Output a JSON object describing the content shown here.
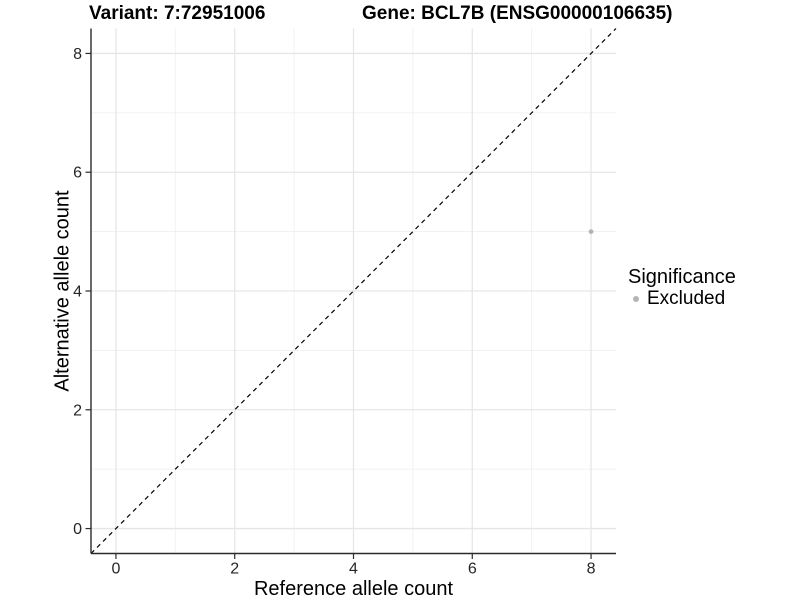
{
  "header": {
    "title_variant": "Variant: 7:72951006",
    "title_gene": "Gene: BCL7B (ENSG00000106635)"
  },
  "axes": {
    "x_label": "Reference allele count",
    "y_label": "Alternative allele count"
  },
  "legend": {
    "title": "Significance",
    "items": [
      {
        "label": "Excluded",
        "color": "#b4b4b4"
      }
    ]
  },
  "chart_data": {
    "type": "scatter",
    "title": "Variant: 7:72951006        Gene: BCL7B (ENSG00000106635)",
    "xlabel": "Reference allele count",
    "ylabel": "Alternative allele count",
    "xlim": [
      -0.42,
      8.42
    ],
    "ylim": [
      -0.42,
      8.42
    ],
    "x_ticks": [
      0,
      2,
      4,
      6,
      8
    ],
    "y_ticks": [
      0,
      2,
      4,
      6,
      8
    ],
    "x_minor_ticks": [
      1,
      3,
      5,
      7
    ],
    "y_minor_ticks": [
      1,
      3,
      5,
      7
    ],
    "grid": "major+minor",
    "legend_position": "right",
    "series": [
      {
        "name": "Excluded",
        "color": "#b4b4b4",
        "point_radius": 2.4,
        "points": [
          {
            "x": 8,
            "y": 5
          }
        ]
      }
    ],
    "reference_line": {
      "slope": 1,
      "intercept": 0,
      "linetype": "dashed",
      "color": "#000000"
    },
    "style": {
      "background": "#ffffff",
      "grid_major_color": "#e6e6e6",
      "grid_minor_color": "#f0f0f0",
      "axis_line_color": "#2b2b2b",
      "tick_color": "#2b2b2b",
      "tick_label_color": "#262626",
      "tick_label_size": 16
    }
  }
}
